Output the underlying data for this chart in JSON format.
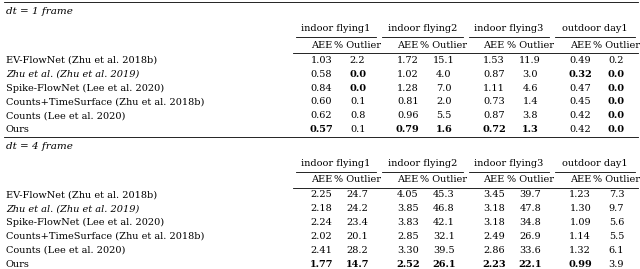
{
  "title_dt1": "dt = 1 frame",
  "title_dt4": "dt = 4 frame",
  "col_groups": [
    "indoor flying1",
    "indoor flying2",
    "indoor flying3",
    "outdoor day1"
  ],
  "sub_headers": [
    "AEE",
    "% Outlier"
  ],
  "methods": [
    "EV-FlowNet (Zhu et al. 2018b)",
    "Zhu et al. (Zhu et al. 2019)",
    "Spike-FlowNet (Lee et al. 2020)",
    "Counts+TimeSurface (Zhu et al. 2018b)",
    "Counts (Lee et al. 2020)",
    "Ours"
  ],
  "dt1_data": [
    [
      "1.03",
      "2.2",
      "1.72",
      "15.1",
      "1.53",
      "11.9",
      "0.49",
      "0.2"
    ],
    [
      "0.58",
      "0.0",
      "1.02",
      "4.0",
      "0.87",
      "3.0",
      "0.32",
      "0.0"
    ],
    [
      "0.84",
      "0.0",
      "1.28",
      "7.0",
      "1.11",
      "4.6",
      "0.47",
      "0.0"
    ],
    [
      "0.60",
      "0.1",
      "0.81",
      "2.0",
      "0.73",
      "1.4",
      "0.45",
      "0.0"
    ],
    [
      "0.62",
      "0.8",
      "0.96",
      "5.5",
      "0.87",
      "3.8",
      "0.42",
      "0.0"
    ],
    [
      "0.57",
      "0.1",
      "0.79",
      "1.6",
      "0.72",
      "1.3",
      "0.42",
      "0.0"
    ]
  ],
  "dt1_bold": [
    [
      false,
      false,
      false,
      false,
      false,
      false,
      false,
      false
    ],
    [
      false,
      true,
      false,
      false,
      false,
      false,
      true,
      true
    ],
    [
      false,
      true,
      false,
      false,
      false,
      false,
      false,
      true
    ],
    [
      false,
      false,
      false,
      false,
      false,
      false,
      false,
      true
    ],
    [
      false,
      false,
      false,
      false,
      false,
      false,
      false,
      true
    ],
    [
      true,
      false,
      true,
      true,
      true,
      true,
      false,
      true
    ]
  ],
  "dt4_data": [
    [
      "2.25",
      "24.7",
      "4.05",
      "45.3",
      "3.45",
      "39.7",
      "1.23",
      "7.3"
    ],
    [
      "2.18",
      "24.2",
      "3.85",
      "46.8",
      "3.18",
      "47.8",
      "1.30",
      "9.7"
    ],
    [
      "2.24",
      "23.4",
      "3.83",
      "42.1",
      "3.18",
      "34.8",
      "1.09",
      "5.6"
    ],
    [
      "2.02",
      "20.1",
      "2.85",
      "32.1",
      "2.49",
      "26.9",
      "1.14",
      "5.5"
    ],
    [
      "2.41",
      "28.2",
      "3.30",
      "39.5",
      "2.86",
      "33.6",
      "1.32",
      "6.1"
    ],
    [
      "1.77",
      "14.7",
      "2.52",
      "26.1",
      "2.23",
      "22.1",
      "0.99",
      "3.9"
    ]
  ],
  "dt4_bold": [
    [
      false,
      false,
      false,
      false,
      false,
      false,
      false,
      false
    ],
    [
      false,
      false,
      false,
      false,
      false,
      false,
      false,
      false
    ],
    [
      false,
      false,
      false,
      false,
      false,
      false,
      false,
      false
    ],
    [
      false,
      false,
      false,
      false,
      false,
      false,
      false,
      false
    ],
    [
      false,
      false,
      false,
      false,
      false,
      false,
      false,
      false
    ],
    [
      true,
      true,
      true,
      true,
      true,
      true,
      true,
      false
    ]
  ],
  "method_italic": [
    false,
    true,
    false,
    false,
    false,
    false
  ],
  "bg_color": "#ffffff",
  "text_color": "#000000",
  "figsize": [
    6.4,
    2.69
  ],
  "dpi": 100
}
